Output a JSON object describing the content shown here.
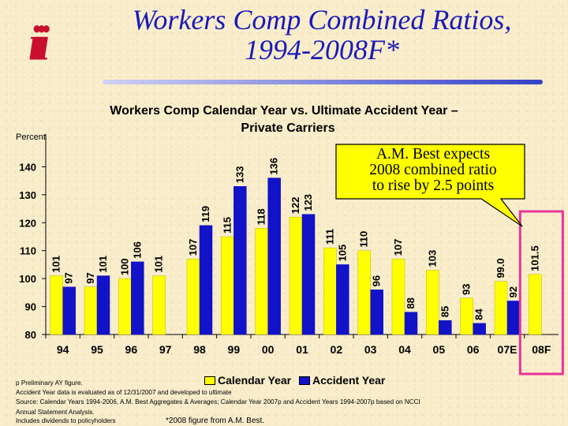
{
  "header": {
    "logo_text": "iii",
    "title_line1": "Workers Comp Combined Ratios,",
    "title_line2": "1994-2008F*"
  },
  "callout": {
    "line1": "A.M. Best expects",
    "line2": "2008 combined ratio",
    "line3": "to rise by 2.5 points"
  },
  "colors": {
    "calendar": "#ffff00",
    "accident": "#1212c8",
    "title": "#1a1ab8",
    "logo": "#c8102e",
    "highlight": "#e8359a"
  },
  "chart_data": {
    "type": "bar",
    "title": "Workers Comp Calendar Year vs. Ultimate Accident Year –",
    "subtitle": "Private Carriers",
    "ylabel": "Percent",
    "xlabel": "",
    "ylim": [
      80,
      150
    ],
    "yticks": [
      80,
      90,
      100,
      110,
      120,
      130,
      140
    ],
    "categories": [
      "94",
      "95",
      "96",
      "97",
      "98",
      "99",
      "00",
      "01",
      "02",
      "03",
      "04",
      "05",
      "06",
      "07E",
      "08F"
    ],
    "series": [
      {
        "name": "Calendar Year",
        "values": [
          101,
          97,
          100,
          101,
          107,
          115,
          118,
          122,
          111,
          110,
          107,
          103,
          93,
          99.0,
          101.5
        ],
        "labels": [
          "101",
          "97",
          "100",
          "101",
          "107",
          "115",
          "118",
          "122",
          "111",
          "110",
          "107",
          "103",
          "93",
          "99.0",
          "101.5"
        ]
      },
      {
        "name": "Accident Year",
        "values": [
          97,
          101,
          106,
          null,
          119,
          133,
          136,
          123,
          105,
          96,
          88,
          85,
          84,
          92,
          null
        ],
        "labels": [
          "97",
          "101",
          "106",
          "",
          "119",
          "133",
          "136",
          "123",
          "105",
          "96",
          "88",
          "85",
          "84",
          "92",
          ""
        ]
      }
    ],
    "highlighted_category": "08F",
    "legend_position": "bottom",
    "grid": false
  },
  "notes": {
    "line1": "p Preliminary AY figure.",
    "line2": "Accident Year data is evaluated as of 12/31/2007 and developed to ultimate",
    "line3": "Source: Calendar Years 1994-2006, A.M. Best Aggregates & Averages; Calendar Year 2007p and Accident Years 1994-2007p based on NCCI",
    "line4": "Annual Statement Analysis.",
    "line5": "Includes dividends to policyholders",
    "footnote": "*2008 figure from A.M. Best."
  }
}
